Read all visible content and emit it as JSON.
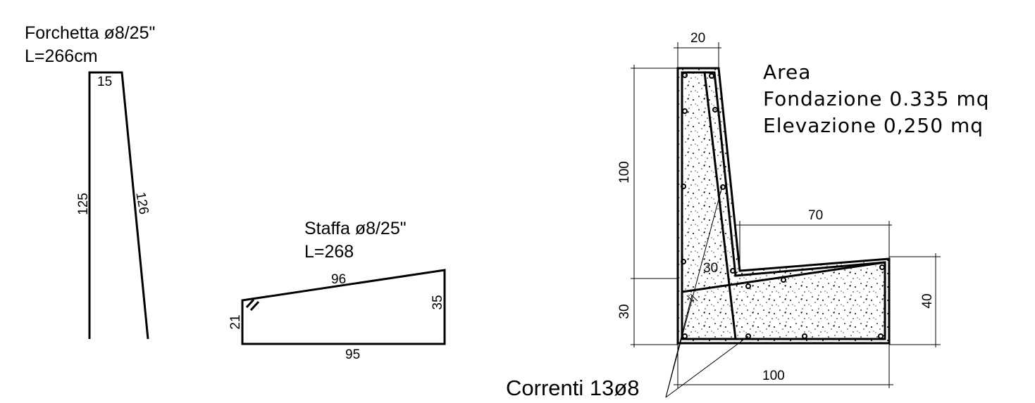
{
  "fork": {
    "title": "Forchetta ø8/25\"",
    "length": "L=266cm",
    "top": "15",
    "left": "125",
    "right": "126"
  },
  "stirrup": {
    "title": "Staffa ø8/25\"",
    "length": "L=268",
    "top": "96",
    "right": "35",
    "left": "21",
    "bottom": "95"
  },
  "section": {
    "top_width": "20",
    "wall_height": "100",
    "base_height": "30",
    "slope": "30",
    "toe_width": "70",
    "toe_height": "40",
    "base_width": "100"
  },
  "area": {
    "title": "Area",
    "foundation": "Fondazione 0.335 mq",
    "elevation": "Elevazione 0,250 mq"
  },
  "bars": "Correnti 13ø8"
}
